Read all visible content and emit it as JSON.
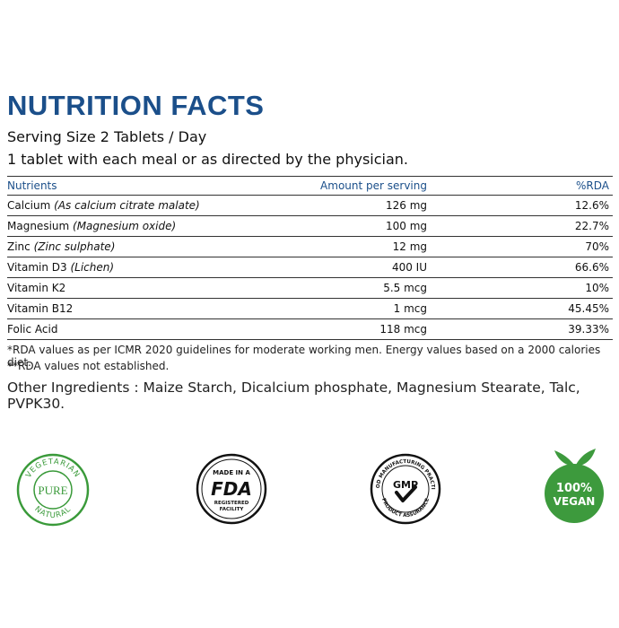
{
  "heading": "NUTRITION FACTS",
  "serving": "Serving Size 2 Tablets / Day",
  "directions": "1 tablet with each meal or as directed by the physician.",
  "table": {
    "headers": {
      "nutrient": "Nutrients",
      "amount": "Amount per serving",
      "rda": "%RDA"
    },
    "rows": [
      {
        "name": "Calcium ",
        "source": "(As calcium citrate malate)",
        "amount": "126 mg",
        "rda": "12.6%"
      },
      {
        "name": "Magnesium ",
        "source": "(Magnesium oxide)",
        "amount": "100 mg",
        "rda": "22.7%"
      },
      {
        "name": "Zinc ",
        "source": "(Zinc sulphate)",
        "amount": "12 mg",
        "rda": "70%"
      },
      {
        "name": "Vitamin D3 ",
        "source": "(Lichen)",
        "amount": "400 IU",
        "rda": "66.6%"
      },
      {
        "name": "Vitamin K2",
        "source": "",
        "amount": "5.5 mcg",
        "rda": "10%"
      },
      {
        "name": "Vitamin B12",
        "source": "",
        "amount": "1 mcg",
        "rda": "45.45%"
      },
      {
        "name": "Folic Acid",
        "source": "",
        "amount": "118 mcg",
        "rda": "39.33%"
      }
    ]
  },
  "notes": {
    "rda_note": "*RDA values as per ICMR 2020 guidelines for moderate working men. Energy values based on a 2000 calories diet.",
    "not_established": "**RDA values not established."
  },
  "other_ingredients": "Other Ingredients : Maize Starch, Dicalcium phosphate, Magnesium Stearate, Talc, PVPK30.",
  "badges": {
    "vegetarian": {
      "top": "VEGETARIAN",
      "center": "PURE",
      "bottom": "NATURAL",
      "color": "#3a9a3a"
    },
    "fda": {
      "top": "MADE IN A",
      "center": "FDA",
      "bottom1": "REGISTERED",
      "bottom2": "FACILITY"
    },
    "gmp": {
      "top": "GOOD MANUFACTURING PRACTICE",
      "center": "GMP",
      "bottom": "PRODUCT ASSURANCE"
    },
    "vegan": {
      "line1": "100%",
      "line2": "VEGAN",
      "color": "#3d9a3d"
    }
  }
}
